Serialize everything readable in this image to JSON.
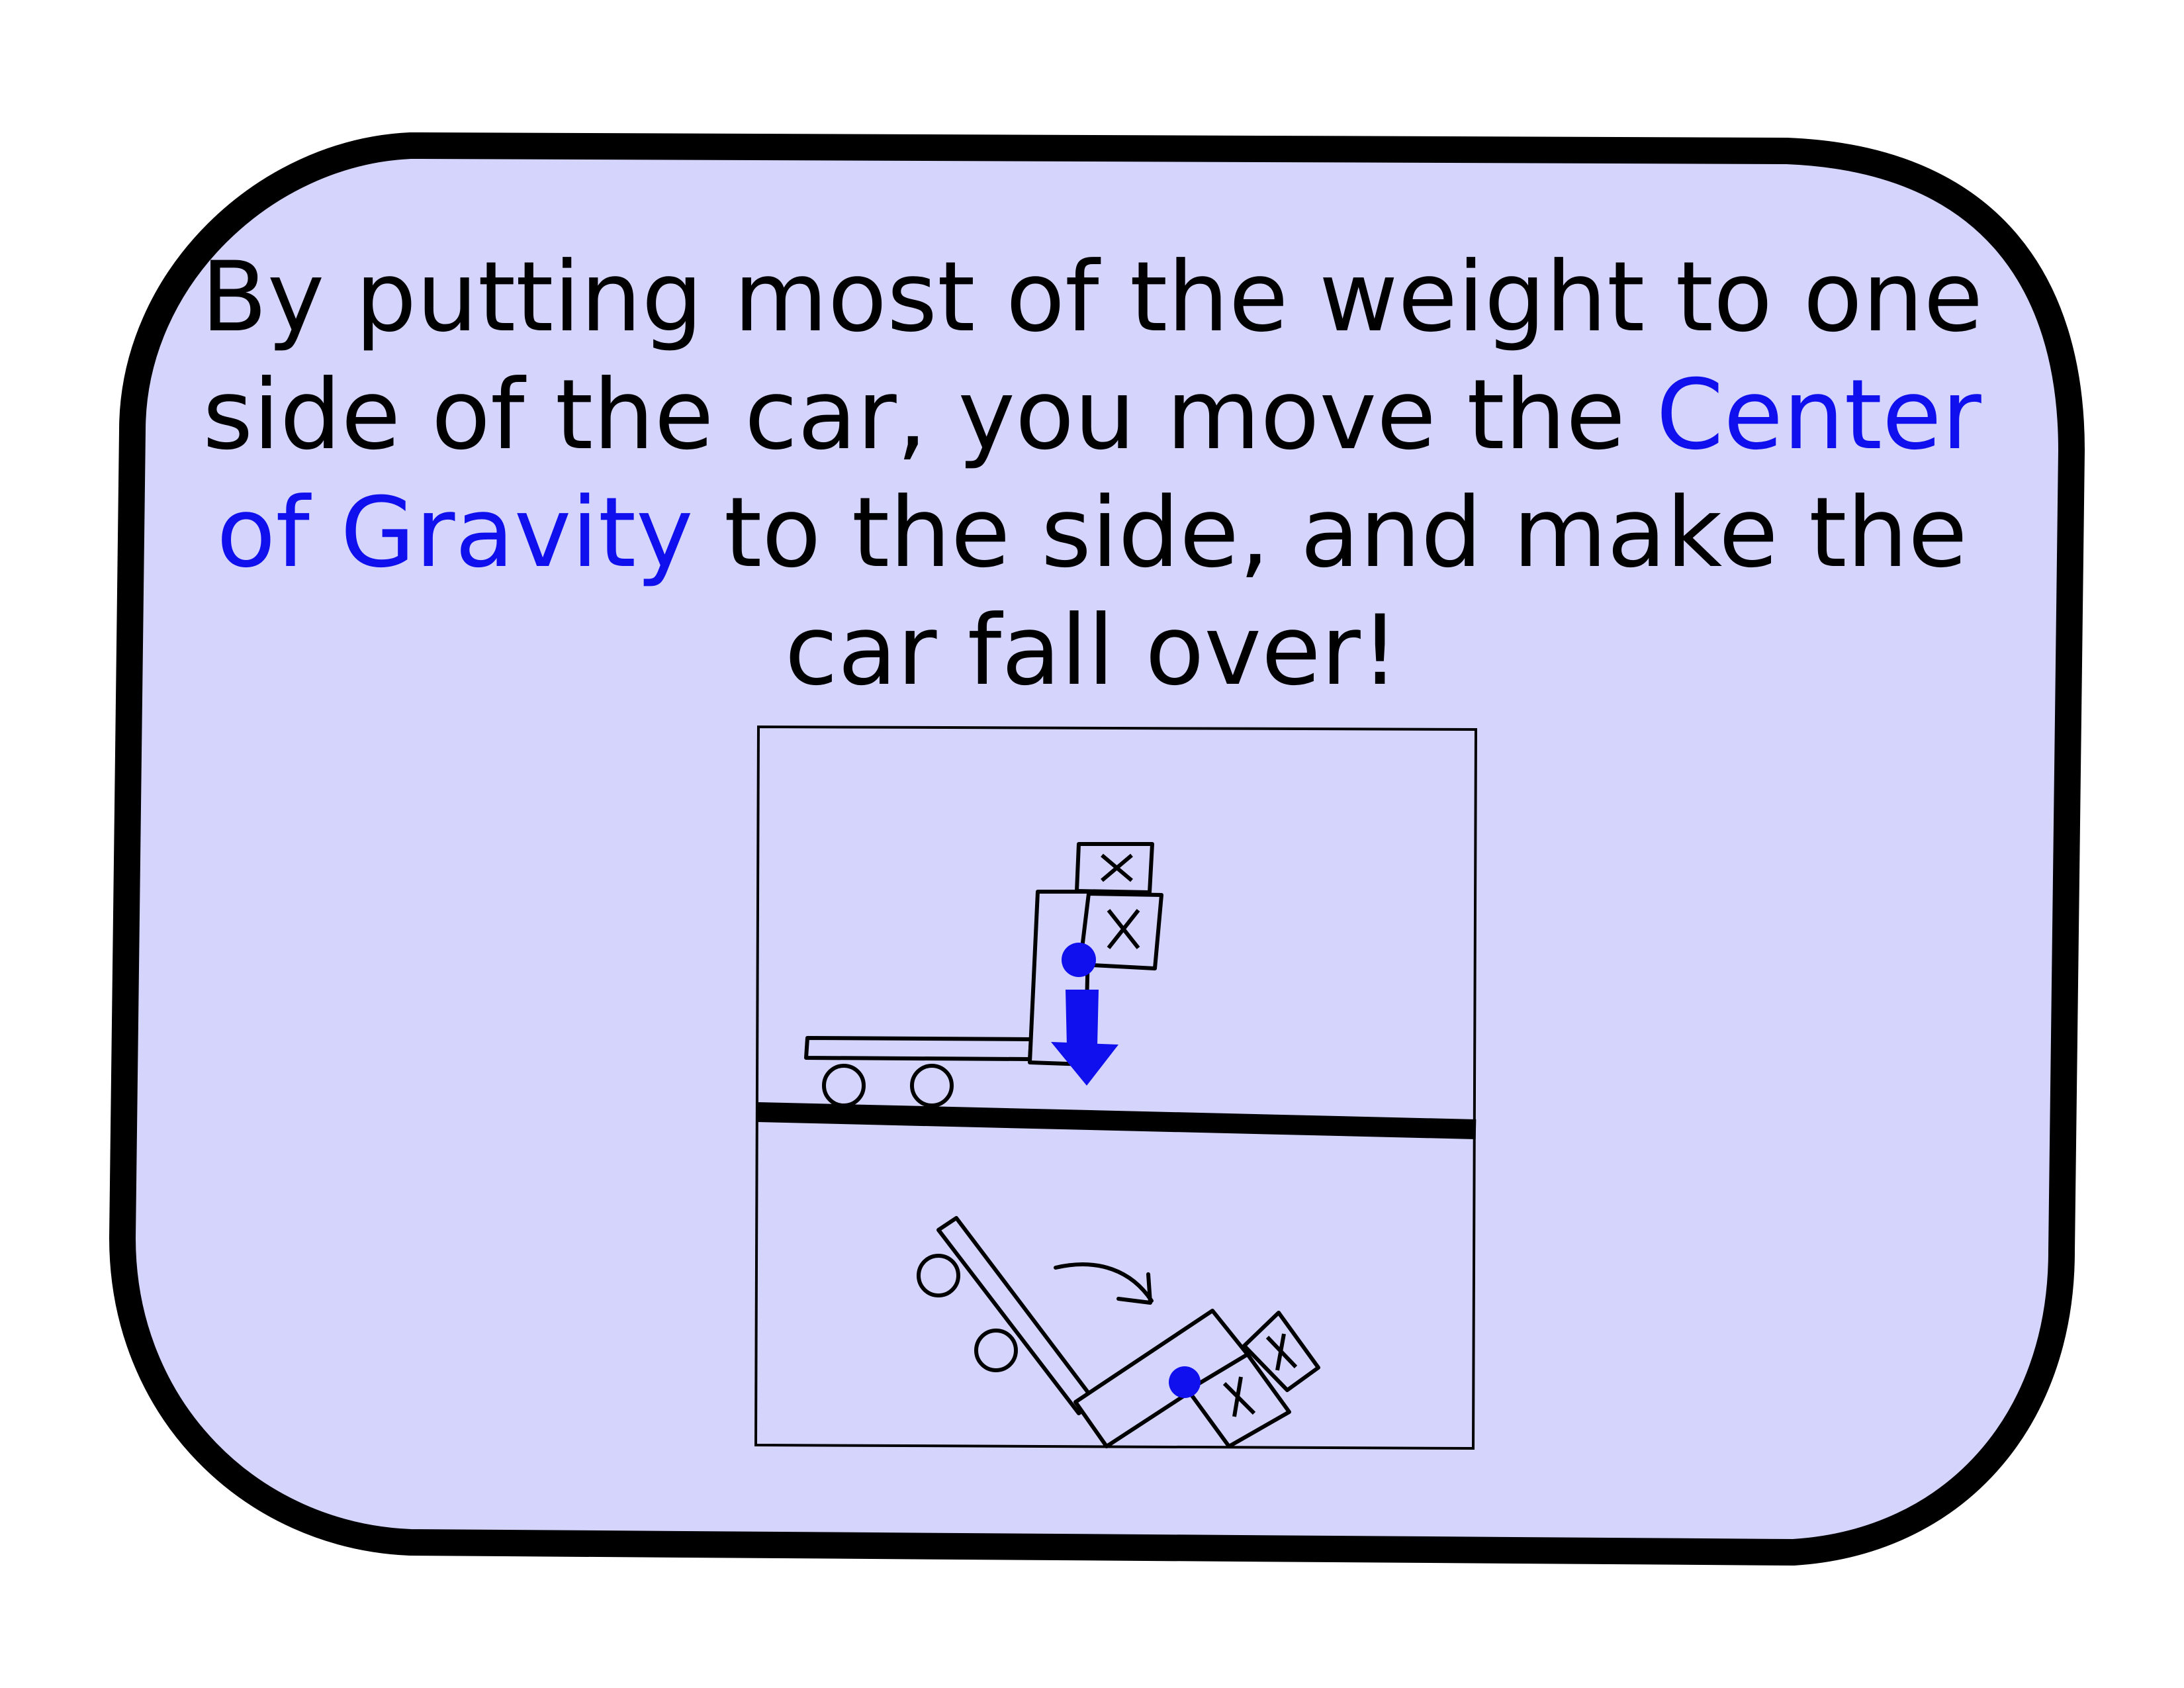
{
  "caption": {
    "before": "By putting most of the weight to one side of the car, you move the ",
    "highlight": "Center of Gravity",
    "after": " to the side, and make the car fall over!"
  },
  "colors": {
    "card_fill": "#d4d4fc",
    "card_stroke": "#000000",
    "highlight_text": "#1010ee",
    "center_of_gravity": "#1010ee",
    "line": "#000000"
  },
  "icons": {
    "upright_car": "cart-with-stacked-weights",
    "tipped_car": "cart-tipped-over",
    "gravity_marker": "center-of-gravity-dot",
    "gravity_arrow": "downward-arrow",
    "rotation_arrow": "curved-arrow"
  }
}
